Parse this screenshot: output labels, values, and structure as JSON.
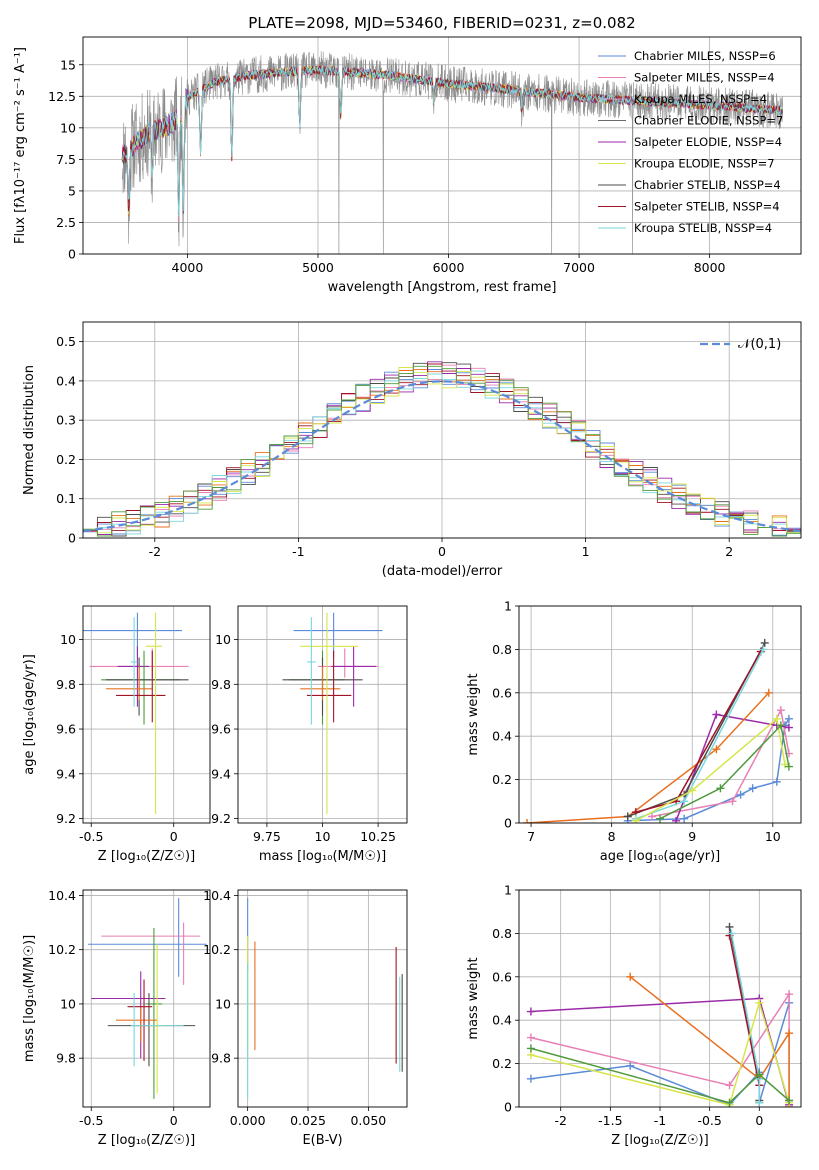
{
  "series_colors": [
    "#5b8bd8",
    "#e87fb5",
    "#c7a0d8",
    "#6a6a6a",
    "#9b2aa8",
    "#d6e64a",
    "#4d4d4d",
    "#a11428",
    "#79d7de"
  ],
  "accent_colors": {
    "orange": "#e8701f",
    "green": "#4f9a3c",
    "normal_curve": "#5b8bd8"
  },
  "chart_data": [
    {
      "id": "spectrum",
      "type": "line",
      "title": "PLATE=2098, MJD=53460, FIBERID=0231, z=0.082",
      "xlabel": "wavelength [Angstrom, rest frame]",
      "ylabel": "Flux [fλ10⁻¹⁷ erg cm⁻² s⁻¹ A⁻¹]",
      "xlim": [
        3200,
        8700
      ],
      "ylim": [
        0,
        17.2
      ],
      "xticks": [
        4000,
        5000,
        6000,
        7000,
        8000
      ],
      "yticks": [
        0.0,
        2.5,
        5.0,
        7.5,
        10.0,
        12.5,
        15.0
      ],
      "legend_position": "top-right",
      "legend": [
        "Chabrier MILES, NSSP=6",
        "Salpeter MILES, NSSP=4",
        "Kroupa MILES, NSSP=4",
        "Chabrier ELODIE, NSSP=7",
        "Salpeter ELODIE, NSSP=4",
        "Kroupa ELODIE, NSSP=7",
        "Chabrier STELIB, NSSP=4",
        "Salpeter STELIB, NSSP=4",
        "Kroupa STELIB, NSSP=4"
      ],
      "continuum": [
        [
          3500,
          7.8
        ],
        [
          3700,
          9.6
        ],
        [
          3900,
          10.4
        ],
        [
          4000,
          12.4
        ],
        [
          4200,
          13.6
        ],
        [
          4500,
          14.2
        ],
        [
          5000,
          14.6
        ],
        [
          5500,
          14.2
        ],
        [
          6000,
          13.5
        ],
        [
          6500,
          13.0
        ],
        [
          7000,
          12.4
        ],
        [
          7500,
          12.1
        ],
        [
          8000,
          11.8
        ],
        [
          8500,
          11.4
        ]
      ],
      "absorption_features": [
        [
          3550,
          3.5
        ],
        [
          3730,
          6.5
        ],
        [
          3934,
          3.0
        ],
        [
          3968,
          4.0
        ],
        [
          4101,
          8.0
        ],
        [
          4340,
          7.5
        ],
        [
          4861,
          10.2
        ],
        [
          5175,
          11.0
        ],
        [
          5890,
          12.2
        ],
        [
          6563,
          11.2
        ]
      ],
      "data_dropouts": [
        5160,
        5500,
        6790,
        7410
      ]
    },
    {
      "id": "residuals",
      "type": "line",
      "xlabel": "(data-model)/error",
      "ylabel": "Normed distribution",
      "xlim": [
        -2.5,
        2.5
      ],
      "ylim": [
        0,
        0.55
      ],
      "xticks": [
        -2,
        -1,
        0,
        1,
        2
      ],
      "yticks": [
        0.0,
        0.1,
        0.2,
        0.3,
        0.4,
        0.5
      ],
      "legend": [
        "𝒩(0,1)"
      ],
      "legend_position": "top-right",
      "bin_width": 0.1
    },
    {
      "id": "age_vs_Z",
      "type": "scatter",
      "xlabel": "Z [log₁₀(Z/Z☉)]",
      "ylabel": "age  [log₁₀(age/yr)]",
      "xlim": [
        -0.55,
        0.22
      ],
      "ylim": [
        9.18,
        10.15
      ],
      "xticks": [
        -0.5,
        0.0
      ],
      "yticks": [
        9.2,
        9.4,
        9.6,
        9.8,
        10.0
      ],
      "points": [
        {
          "x": -0.22,
          "y": 10.04,
          "xerr": [
            0.5,
            0.27
          ],
          "yerr": [
            0.12,
            0.08
          ],
          "color": "#5b8bd8"
        },
        {
          "x": -0.13,
          "y": 9.88,
          "xerr": [
            0.38,
            0.22
          ],
          "yerr": [
            0.05,
            0.08
          ],
          "color": "#e87fb5"
        },
        {
          "x": -0.22,
          "y": 9.88,
          "xerr": [
            0.12,
            0.07
          ],
          "yerr": [
            0.18,
            0.09
          ],
          "color": "#9b2aa8"
        },
        {
          "x": -0.18,
          "y": 9.82,
          "xerr": [
            0.26,
            0.22
          ],
          "yerr": [
            0.2,
            0.13
          ],
          "color": "#4f9a3c"
        },
        {
          "x": -0.21,
          "y": 9.82,
          "xerr": [
            0.2,
            0.3
          ],
          "yerr": [
            0.16,
            0.1
          ],
          "color": "#4d4d4d"
        },
        {
          "x": -0.21,
          "y": 9.78,
          "xerr": [
            0.2,
            0.08
          ],
          "yerr": [
            0.05,
            0.1
          ],
          "color": "#e8701f"
        },
        {
          "x": -0.13,
          "y": 9.75,
          "xerr": [
            0.22,
            0.08
          ],
          "yerr": [
            0.12,
            0.2
          ],
          "color": "#a11428"
        },
        {
          "x": -0.11,
          "y": 9.97,
          "xerr": [
            0.06,
            0.04
          ],
          "yerr": [
            0.75,
            0.15
          ],
          "color": "#d6e64a"
        },
        {
          "x": -0.24,
          "y": 9.9,
          "xerr": [
            0.02,
            0.02
          ],
          "yerr": [
            0.2,
            0.2
          ],
          "color": "#79d7de"
        }
      ]
    },
    {
      "id": "age_vs_mass",
      "type": "scatter",
      "xlabel": "mass [log₁₀(M/M☉)]",
      "ylabel": "",
      "xlim": [
        9.62,
        10.38
      ],
      "ylim": [
        9.18,
        10.15
      ],
      "xticks": [
        9.75,
        10.0,
        10.25
      ],
      "yticks": [
        9.2,
        9.4,
        9.6,
        9.8,
        10.0
      ],
      "points": [
        {
          "x": 10.05,
          "y": 10.04,
          "xerr": [
            0.18,
            0.22
          ],
          "yerr": [
            0.12,
            0.08
          ],
          "color": "#5b8bd8"
        },
        {
          "x": 10.1,
          "y": 9.88,
          "xerr": [
            0.12,
            0.15
          ],
          "yerr": [
            0.05,
            0.08
          ],
          "color": "#e87fb5"
        },
        {
          "x": 10.14,
          "y": 9.88,
          "xerr": [
            0.1,
            0.1
          ],
          "yerr": [
            0.18,
            0.09
          ],
          "color": "#9b2aa8"
        },
        {
          "x": 10.0,
          "y": 9.82,
          "xerr": [
            0.15,
            0.1
          ],
          "yerr": [
            0.2,
            0.13
          ],
          "color": "#4f9a3c"
        },
        {
          "x": 10.0,
          "y": 9.82,
          "xerr": [
            0.18,
            0.18
          ],
          "yerr": [
            0.16,
            0.1
          ],
          "color": "#4d4d4d"
        },
        {
          "x": 10.0,
          "y": 9.78,
          "xerr": [
            0.1,
            0.08
          ],
          "yerr": [
            0.05,
            0.1
          ],
          "color": "#e8701f"
        },
        {
          "x": 10.05,
          "y": 9.75,
          "xerr": [
            0.12,
            0.08
          ],
          "yerr": [
            0.12,
            0.2
          ],
          "color": "#a11428"
        },
        {
          "x": 10.02,
          "y": 9.97,
          "xerr": [
            0.12,
            0.14
          ],
          "yerr": [
            0.75,
            0.15
          ],
          "color": "#d6e64a"
        },
        {
          "x": 9.95,
          "y": 9.9,
          "xerr": [
            0.02,
            0.02
          ],
          "yerr": [
            0.28,
            0.2
          ],
          "color": "#79d7de"
        }
      ]
    },
    {
      "id": "mass_weight_vs_age",
      "type": "line",
      "xlabel": "age  [log₁₀(age/yr)]",
      "ylabel": "mass weight",
      "xlim": [
        6.85,
        10.35
      ],
      "ylim": [
        0,
        1.0
      ],
      "xticks": [
        7,
        8,
        9,
        10
      ],
      "yticks": [
        0.0,
        0.2,
        0.4,
        0.6,
        0.8,
        1.0
      ],
      "series": [
        {
          "color": "#5b8bd8",
          "x": [
            8.2,
            8.9,
            9.6,
            9.75,
            10.05,
            10.15,
            10.2
          ],
          "y": [
            0.01,
            0.02,
            0.13,
            0.16,
            0.19,
            0.45,
            0.48
          ]
        },
        {
          "color": "#e87fb5",
          "x": [
            8.5,
            9.5,
            10.1,
            10.2
          ],
          "y": [
            0.03,
            0.1,
            0.52,
            0.32
          ]
        },
        {
          "color": "#9b2aa8",
          "x": [
            8.8,
            9.3,
            10.05,
            10.2
          ],
          "y": [
            0.01,
            0.5,
            0.45,
            0.44
          ]
        },
        {
          "color": "#e8701f",
          "x": [
            6.95,
            8.2,
            9.3,
            9.95
          ],
          "y": [
            0.0,
            0.03,
            0.34,
            0.6
          ]
        },
        {
          "color": "#4d4d4d",
          "x": [
            8.2,
            8.9,
            9.9
          ],
          "y": [
            0.03,
            0.13,
            0.83
          ]
        },
        {
          "color": "#a11428",
          "x": [
            8.3,
            8.8,
            9.85
          ],
          "y": [
            0.05,
            0.1,
            0.79
          ]
        },
        {
          "color": "#79d7de",
          "x": [
            8.3,
            8.9,
            9.88
          ],
          "y": [
            0.02,
            0.1,
            0.8
          ]
        },
        {
          "color": "#d6e64a",
          "x": [
            8.3,
            9.0,
            10.05,
            10.15
          ],
          "y": [
            0.01,
            0.15,
            0.48,
            0.27
          ]
        },
        {
          "color": "#4f9a3c",
          "x": [
            8.6,
            9.35,
            10.1,
            10.2
          ],
          "y": [
            0.02,
            0.16,
            0.45,
            0.26
          ]
        }
      ]
    },
    {
      "id": "mass_vs_Z",
      "type": "scatter",
      "xlabel": "Z [log₁₀(Z/Z☉)]",
      "ylabel": "mass [log₁₀(M/M☉)]",
      "xlim": [
        -0.55,
        0.22
      ],
      "ylim": [
        9.62,
        10.42
      ],
      "xticks": [
        -0.5,
        0.0
      ],
      "yticks": [
        9.8,
        10.0,
        10.2,
        10.4
      ],
      "points": [
        {
          "x": 0.03,
          "y": 10.22,
          "xerr": [
            0.55,
            0.17
          ],
          "yerr": [
            0.12,
            0.17
          ],
          "color": "#5b8bd8"
        },
        {
          "x": 0.06,
          "y": 10.25,
          "xerr": [
            0.5,
            0.1
          ],
          "yerr": [
            0.18,
            0.05
          ],
          "color": "#e87fb5"
        },
        {
          "x": -0.2,
          "y": 10.02,
          "xerr": [
            0.3,
            0.15
          ],
          "yerr": [
            0.22,
            0.1
          ],
          "color": "#9b2aa8"
        },
        {
          "x": -0.12,
          "y": 10.0,
          "xerr": [
            0.05,
            0.05
          ],
          "yerr": [
            0.35,
            0.28
          ],
          "color": "#4f9a3c"
        },
        {
          "x": -0.15,
          "y": 9.92,
          "xerr": [
            0.25,
            0.28
          ],
          "yerr": [
            0.15,
            0.12
          ],
          "color": "#4d4d4d"
        },
        {
          "x": -0.2,
          "y": 9.94,
          "xerr": [
            0.15,
            0.1
          ],
          "yerr": [
            0.08,
            0.05
          ],
          "color": "#e8701f"
        },
        {
          "x": -0.18,
          "y": 9.99,
          "xerr": [
            0.1,
            0.05
          ],
          "yerr": [
            0.2,
            0.1
          ],
          "color": "#a11428"
        },
        {
          "x": -0.1,
          "y": 9.92,
          "xerr": [
            0.05,
            0.05
          ],
          "yerr": [
            0.25,
            0.3
          ],
          "color": "#d6e64a"
        },
        {
          "x": -0.24,
          "y": 9.92,
          "xerr": [
            0.02,
            0.3
          ],
          "yerr": [
            0.15,
            0.12
          ],
          "color": "#79d7de"
        }
      ]
    },
    {
      "id": "mass_vs_EBV",
      "type": "scatter",
      "xlabel": "E(B-V)",
      "ylabel": "",
      "xlim": [
        -0.004,
        0.066
      ],
      "ylim": [
        9.62,
        10.42
      ],
      "xticks": [
        0.0,
        0.025,
        0.05
      ],
      "xtick_labels": [
        "0.000",
        "0.025",
        "0.050"
      ],
      "yticks": [
        9.8,
        10.0,
        10.2,
        10.4
      ],
      "points": [
        {
          "x": 0.0,
          "y": 10.22,
          "yerr": [
            0.1,
            0.17
          ],
          "color": "#5b8bd8"
        },
        {
          "x": 0.0,
          "y": 10.05,
          "yerr": [
            0.25,
            0.2
          ],
          "color": "#d6e64a"
        },
        {
          "x": 0.0,
          "y": 9.95,
          "yerr": [
            0.3,
            0.2
          ],
          "color": "#79d7de"
        },
        {
          "x": 0.003,
          "y": 10.05,
          "yerr": [
            0.22,
            0.18
          ],
          "color": "#e8701f"
        },
        {
          "x": 0.0615,
          "y": 10.0,
          "yerr": [
            0.22,
            0.21
          ],
          "color": "#a11428"
        },
        {
          "x": 0.063,
          "y": 9.95,
          "yerr": [
            0.2,
            0.15
          ],
          "color": "#79d7de"
        },
        {
          "x": 0.064,
          "y": 9.93,
          "yerr": [
            0.18,
            0.18
          ],
          "color": "#4d4d4d"
        }
      ]
    },
    {
      "id": "mass_weight_vs_Z",
      "type": "line",
      "xlabel": "Z [log₁₀(Z/Z☉)]",
      "ylabel": "mass weight",
      "xlim": [
        -2.42,
        0.42
      ],
      "ylim": [
        0,
        1.0
      ],
      "xticks": [
        -2.0,
        -1.5,
        -1.0,
        -0.5,
        0.0
      ],
      "yticks": [
        0.0,
        0.2,
        0.4,
        0.6,
        0.8,
        1.0
      ],
      "series": [
        {
          "color": "#5b8bd8",
          "x": [
            -2.3,
            -1.3,
            -0.3,
            0.0,
            0.0,
            0.3
          ],
          "y": [
            0.13,
            0.19,
            0.01,
            0.16,
            0.02,
            0.48
          ]
        },
        {
          "color": "#e87fb5",
          "x": [
            -2.3,
            -0.3,
            0.3,
            0.3
          ],
          "y": [
            0.32,
            0.1,
            0.52,
            0.03
          ]
        },
        {
          "color": "#9b2aa8",
          "x": [
            -2.3,
            0.0,
            0.3
          ],
          "y": [
            0.44,
            0.5,
            0.01
          ]
        },
        {
          "color": "#e8701f",
          "x": [
            -1.3,
            0.0,
            0.3,
            0.3
          ],
          "y": [
            0.6,
            0.13,
            0.34,
            0.0
          ]
        },
        {
          "color": "#4d4d4d",
          "x": [
            -0.3,
            0.0,
            0.0
          ],
          "y": [
            0.83,
            0.13,
            0.03
          ]
        },
        {
          "color": "#a11428",
          "x": [
            -0.3,
            0.0,
            0.0
          ],
          "y": [
            0.79,
            0.1,
            0.15
          ]
        },
        {
          "color": "#79d7de",
          "x": [
            -0.28,
            0.0,
            0.0
          ],
          "y": [
            0.8,
            0.13,
            0.02
          ]
        },
        {
          "color": "#d6e64a",
          "x": [
            -2.3,
            -0.3,
            0.0,
            0.3
          ],
          "y": [
            0.24,
            0.01,
            0.48,
            0.02
          ]
        },
        {
          "color": "#4f9a3c",
          "x": [
            -2.3,
            -0.3,
            0.0,
            0.3
          ],
          "y": [
            0.27,
            0.02,
            0.15,
            0.03
          ]
        }
      ]
    }
  ]
}
